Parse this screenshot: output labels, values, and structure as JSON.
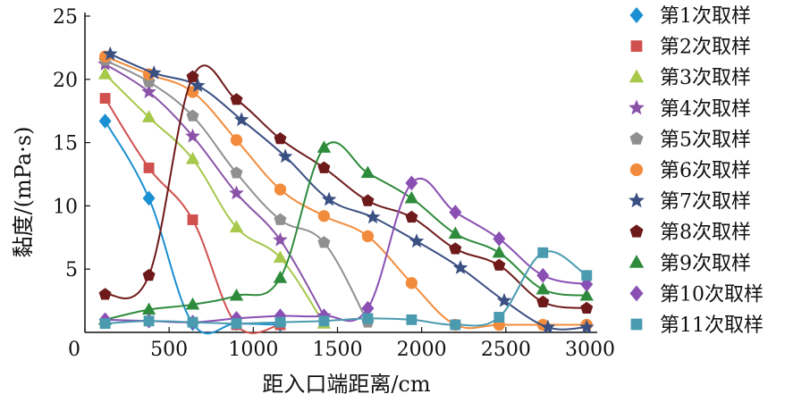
{
  "chart_data": {
    "type": "line",
    "xlabel": "距入口端距离/cm",
    "ylabel": "黏度/(mPa·s)",
    "xlim": [
      0,
      3000
    ],
    "ylim": [
      0,
      25
    ],
    "x_ticks": [
      0,
      500,
      1000,
      1500,
      2000,
      2500,
      3000
    ],
    "y_ticks": [
      5,
      10,
      15,
      20,
      25
    ],
    "grid": false,
    "legend_position": "right",
    "series": [
      {
        "name": "第1次取样",
        "color": "#1a8fd1",
        "marker": "diamond",
        "points": [
          [
            120,
            16.7
          ],
          [
            380,
            10.6
          ],
          [
            640,
            0.7
          ],
          [
            900,
            0.7
          ],
          [
            1160,
            0.6
          ]
        ]
      },
      {
        "name": "第2次取样",
        "color": "#d0504e",
        "marker": "square",
        "points": [
          [
            120,
            18.5
          ],
          [
            380,
            13.0
          ],
          [
            640,
            8.9
          ],
          [
            900,
            0.6
          ],
          [
            1160,
            0.6
          ]
        ]
      },
      {
        "name": "第3次取样",
        "color": "#a6c84b",
        "marker": "triangle",
        "points": [
          [
            120,
            20.4
          ],
          [
            380,
            17.0
          ],
          [
            640,
            13.7
          ],
          [
            900,
            8.3
          ],
          [
            1160,
            5.9
          ],
          [
            1420,
            0.7
          ]
        ]
      },
      {
        "name": "第4次取样",
        "color": "#8a53a8",
        "marker": "star",
        "points": [
          [
            120,
            21.2
          ],
          [
            380,
            19.0
          ],
          [
            640,
            15.5
          ],
          [
            900,
            11.0
          ],
          [
            1160,
            7.3
          ],
          [
            1420,
            1.3
          ]
        ]
      },
      {
        "name": "第5次取样",
        "color": "#909090",
        "marker": "pentagon",
        "points": [
          [
            120,
            21.5
          ],
          [
            380,
            19.8
          ],
          [
            640,
            17.1
          ],
          [
            900,
            12.6
          ],
          [
            1160,
            8.9
          ],
          [
            1420,
            7.1
          ],
          [
            1680,
            0.8
          ]
        ]
      },
      {
        "name": "第6次取样",
        "color": "#f28c3c",
        "marker": "circle",
        "points": [
          [
            120,
            21.8
          ],
          [
            380,
            20.4
          ],
          [
            640,
            19.0
          ],
          [
            900,
            15.2
          ],
          [
            1160,
            11.3
          ],
          [
            1420,
            9.2
          ],
          [
            1680,
            7.6
          ],
          [
            1940,
            3.9
          ],
          [
            2200,
            0.6
          ],
          [
            2460,
            0.6
          ],
          [
            2720,
            0.6
          ],
          [
            2980,
            0.6
          ]
        ]
      },
      {
        "name": "第7次取样",
        "color": "#3a4f82",
        "marker": "star",
        "points": [
          [
            150,
            22.0
          ],
          [
            410,
            20.5
          ],
          [
            670,
            19.5
          ],
          [
            930,
            16.8
          ],
          [
            1190,
            13.9
          ],
          [
            1450,
            10.5
          ],
          [
            1710,
            9.1
          ],
          [
            1970,
            7.2
          ],
          [
            2230,
            5.1
          ],
          [
            2490,
            2.5
          ],
          [
            2750,
            0.4
          ],
          [
            2980,
            0.4
          ]
        ]
      },
      {
        "name": "第8次取样",
        "color": "#6e1a1a",
        "marker": "pentagon",
        "points": [
          [
            120,
            3.0
          ],
          [
            380,
            4.5
          ],
          [
            640,
            20.2
          ],
          [
            900,
            18.4
          ],
          [
            1160,
            15.3
          ],
          [
            1420,
            13.0
          ],
          [
            1680,
            10.4
          ],
          [
            1940,
            9.1
          ],
          [
            2200,
            6.6
          ],
          [
            2460,
            5.3
          ],
          [
            2720,
            2.4
          ],
          [
            2980,
            1.9
          ]
        ]
      },
      {
        "name": "第9次取样",
        "color": "#2e8b3c",
        "marker": "triangle",
        "points": [
          [
            120,
            1.0
          ],
          [
            380,
            1.8
          ],
          [
            640,
            2.2
          ],
          [
            900,
            2.9
          ],
          [
            1160,
            4.3
          ],
          [
            1420,
            14.6
          ],
          [
            1680,
            12.6
          ],
          [
            1940,
            10.6
          ],
          [
            2200,
            7.8
          ],
          [
            2460,
            6.3
          ],
          [
            2720,
            3.4
          ],
          [
            2980,
            2.9
          ]
        ]
      },
      {
        "name": "第10次取样",
        "color": "#8a4fb3",
        "marker": "diamond",
        "points": [
          [
            120,
            1.0
          ],
          [
            380,
            0.9
          ],
          [
            640,
            0.8
          ],
          [
            900,
            1.1
          ],
          [
            1160,
            1.3
          ],
          [
            1420,
            1.3
          ],
          [
            1680,
            1.9
          ],
          [
            1940,
            11.8
          ],
          [
            2200,
            9.5
          ],
          [
            2460,
            7.4
          ],
          [
            2720,
            4.5
          ],
          [
            2980,
            3.8
          ]
        ]
      },
      {
        "name": "第11次取样",
        "color": "#4a9bb0",
        "marker": "square",
        "points": [
          [
            120,
            0.7
          ],
          [
            380,
            0.9
          ],
          [
            640,
            0.8
          ],
          [
            900,
            0.7
          ],
          [
            1160,
            0.8
          ],
          [
            1420,
            0.9
          ],
          [
            1680,
            1.1
          ],
          [
            1940,
            1.0
          ],
          [
            2200,
            0.6
          ],
          [
            2460,
            1.2
          ],
          [
            2720,
            6.3
          ],
          [
            2980,
            4.5
          ]
        ]
      }
    ]
  }
}
